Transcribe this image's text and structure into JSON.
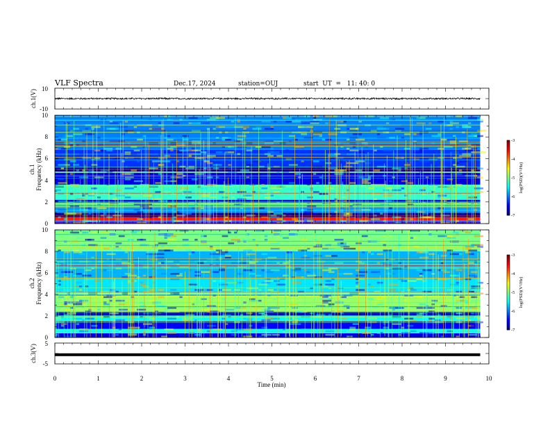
{
  "header": {
    "title": "VLF Spectra",
    "date": "Dec.17, 2024",
    "station": "station=OUJ",
    "start": "start  UT  =   11: 40: 0"
  },
  "chart_data": [
    {
      "type": "line",
      "panel": "ch1-waveform",
      "ylabel": "ch.1(V)",
      "ylim": [
        -10,
        10
      ],
      "yticks": [
        "10",
        "-10"
      ],
      "x_extent_min": 9.8,
      "amplitude_v": 0.9,
      "color": "#000000"
    },
    {
      "type": "heatmap",
      "panel": "ch1-spectrogram",
      "ylabel_line1": "ch.1",
      "ylabel_line2": "Frequency (kHz)",
      "ylim": [
        0,
        10
      ],
      "yticks": [
        "0",
        "2",
        "4",
        "6",
        "8",
        "10"
      ],
      "colorbar": {
        "label": "log(PSD)(V²/Hz)",
        "ticks": [
          "-3",
          "-4",
          "-5",
          "-6",
          "-7"
        ],
        "range": [
          -7,
          -3
        ]
      },
      "bands_khz": [
        {
          "f0": 0.0,
          "f1": 0.3,
          "level": -6.5
        },
        {
          "f0": 0.3,
          "f1": 0.6,
          "level": -3.6
        },
        {
          "f0": 0.6,
          "f1": 1.0,
          "level": -6.9
        },
        {
          "f0": 1.0,
          "f1": 1.5,
          "level": -5.9
        },
        {
          "f0": 1.5,
          "f1": 1.9,
          "level": -5.1
        },
        {
          "f0": 1.9,
          "f1": 2.2,
          "level": -6.6
        },
        {
          "f0": 2.2,
          "f1": 3.6,
          "level": -5.3
        },
        {
          "f0": 3.6,
          "f1": 4.7,
          "level": -6.6
        },
        {
          "f0": 4.7,
          "f1": 4.8,
          "level": -4.6
        },
        {
          "f0": 4.8,
          "f1": 5.2,
          "level": -6.9
        },
        {
          "f0": 5.2,
          "f1": 6.8,
          "level": -6.3
        },
        {
          "f0": 6.8,
          "f1": 10.0,
          "level": -6.0
        }
      ]
    },
    {
      "type": "heatmap",
      "panel": "ch2-spectrogram",
      "ylabel_line1": "ch.2",
      "ylabel_line2": "Frequency (kHz)",
      "ylim": [
        0,
        10
      ],
      "yticks": [
        "0",
        "2",
        "4",
        "6",
        "8",
        "10"
      ],
      "colorbar": {
        "label": "log(PSD)(V²/Hz)",
        "ticks": [
          "-3",
          "-4",
          "-5",
          "-6",
          "-7"
        ],
        "range": [
          -7,
          -3
        ]
      },
      "bands_khz": [
        {
          "f0": 0.0,
          "f1": 0.4,
          "level": -6.6
        },
        {
          "f0": 0.4,
          "f1": 0.8,
          "level": -5.4
        },
        {
          "f0": 0.8,
          "f1": 1.5,
          "level": -6.5
        },
        {
          "f0": 1.5,
          "f1": 2.0,
          "level": -5.5
        },
        {
          "f0": 2.0,
          "f1": 2.4,
          "level": -6.7
        },
        {
          "f0": 2.4,
          "f1": 3.8,
          "level": -4.9
        },
        {
          "f0": 3.8,
          "f1": 4.2,
          "level": -4.7
        },
        {
          "f0": 4.2,
          "f1": 5.5,
          "level": -5.6
        },
        {
          "f0": 5.5,
          "f1": 8.0,
          "level": -5.8
        },
        {
          "f0": 8.0,
          "f1": 10.0,
          "level": -5.0
        }
      ]
    },
    {
      "type": "line",
      "panel": "ch3-waveform",
      "ylabel": "ch.3(V)",
      "ylim": [
        -5,
        5
      ],
      "yticks": [
        "5",
        "-5"
      ],
      "x_extent_min": 9.8,
      "level_v": -0.6,
      "color": "#000000"
    }
  ],
  "xaxis": {
    "label": "Time (min)",
    "ticks": [
      "0",
      "1",
      "2",
      "3",
      "4",
      "5",
      "6",
      "7",
      "8",
      "9",
      "10"
    ],
    "xlim": [
      0,
      10
    ]
  }
}
